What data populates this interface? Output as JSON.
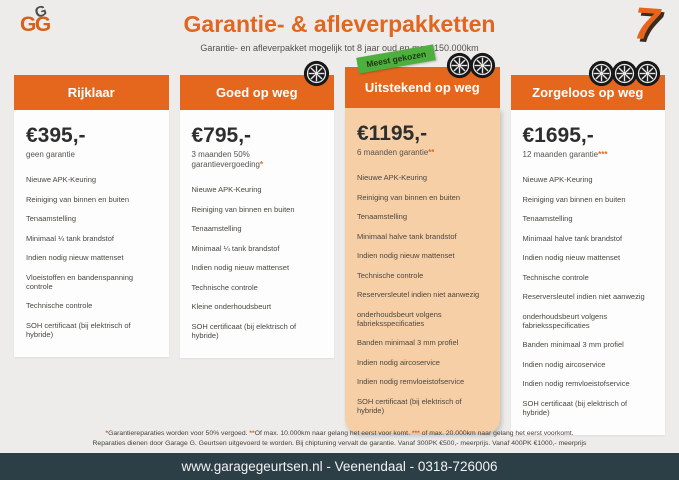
{
  "page": {
    "title": "Garantie- & afleverpakketten",
    "subtitle": "Garantie- en afleverpakket mogelijk tot 8 jaar oud en max. 150.000km",
    "logo_top": "G",
    "logo_bottom": "GG",
    "decoration": "7"
  },
  "colors": {
    "accent_orange": "#e5671e",
    "highlight_card_bg": "#f6cfa6",
    "badge_green": "#4eae3e",
    "footer_bg": "#2c3e46",
    "page_bg": "#edecea"
  },
  "badge": {
    "label": "Meest gekozen"
  },
  "packages": [
    {
      "name": "Rijklaar",
      "price": "€395,-",
      "sub": "geen garantie",
      "stars": "",
      "wheels": 0,
      "highlight": false,
      "items": [
        "Nieuwe APK-Keuring",
        "Reiniging van binnen en buiten",
        "Tenaamstelling",
        "Minimaal ¼ tank brandstof",
        "Indien nodig nieuw mattenset",
        "Vloeistoffen en bandenspanning controle",
        "Technische controle",
        "SOH certificaat (bij elektrisch of hybride)"
      ]
    },
    {
      "name": "Goed op weg",
      "price": "€795,-",
      "sub": "3 maanden 50% garantievergoeding",
      "stars": "*",
      "wheels": 1,
      "highlight": false,
      "items": [
        "Nieuwe APK-Keuring",
        "Reiniging van binnen en buiten",
        "Tenaamstelling",
        "Minimaal ¼ tank brandstof",
        "Indien nodig nieuw mattenset",
        "Technische controle",
        "Kleine onderhoudsbeurt",
        "SOH certificaat (bij elektrisch of hybride)"
      ]
    },
    {
      "name": "Uitstekend op weg",
      "price": "€1195,-",
      "sub": "6 maanden garantie",
      "stars": "**",
      "wheels": 2,
      "highlight": true,
      "items": [
        "Nieuwe APK-Keuring",
        "Reiniging van binnen en buiten",
        "Tenaamstelling",
        "Minimaal halve tank brandstof",
        "Indien nodig nieuw mattenset",
        "Technische controle",
        "Reserversleutel indien niet aanwezig",
        "onderhoudsbeurt volgens fabrieksspecificaties",
        "Banden minimaal 3 mm profiel",
        "Indien nodig aircoservice",
        "Indien nodig remvloeistofservice",
        "SOH certificaat (bij elektrisch of hybride)"
      ]
    },
    {
      "name": "Zorgeloos op weg",
      "price": "€1695,-",
      "sub": "12 maanden garantie",
      "stars": "***",
      "wheels": 3,
      "highlight": false,
      "items": [
        "Nieuwe APK-Keuring",
        "Reiniging van binnen en buiten",
        "Tenaamstelling",
        "Minimaal halve tank brandstof",
        "Indien nodig nieuw mattenset",
        "Technische controle",
        "Reserversleutel indien niet aanwezig",
        "onderhoudsbeurt volgens fabrieksspecificaties",
        "Banden minimaal 3 mm profiel",
        "Indien nodig aircoservice",
        "Indien nodig remvloeistofservice",
        "SOH certificaat (bij elektrisch of hybride)"
      ]
    }
  ],
  "footnote": {
    "line1": [
      {
        "t": "*",
        "a": true
      },
      {
        "t": "Garantiereparaties worden voor 50% vergoed. ",
        "a": false
      },
      {
        "t": "**",
        "a": true
      },
      {
        "t": "Of max. 10.000km naar gelang het eerst voor komt. ",
        "a": false
      },
      {
        "t": "*** ",
        "a": true
      },
      {
        "t": "of max. 20.000km naar gelang het eerst voorkomt.",
        "a": false
      }
    ],
    "line2": [
      {
        "t": "Reparaties dienen door Garage G. Geurtsen uitgevoerd te worden. Bij chiptuning vervalt de garantie. Vanaf 300PK €500,- meerprijs. Vanaf 400PK €1000,- meerprijs",
        "a": false
      }
    ]
  },
  "footer": {
    "text": "www.garagegeurtsen.nl - Veenendaal - 0318-726006"
  }
}
